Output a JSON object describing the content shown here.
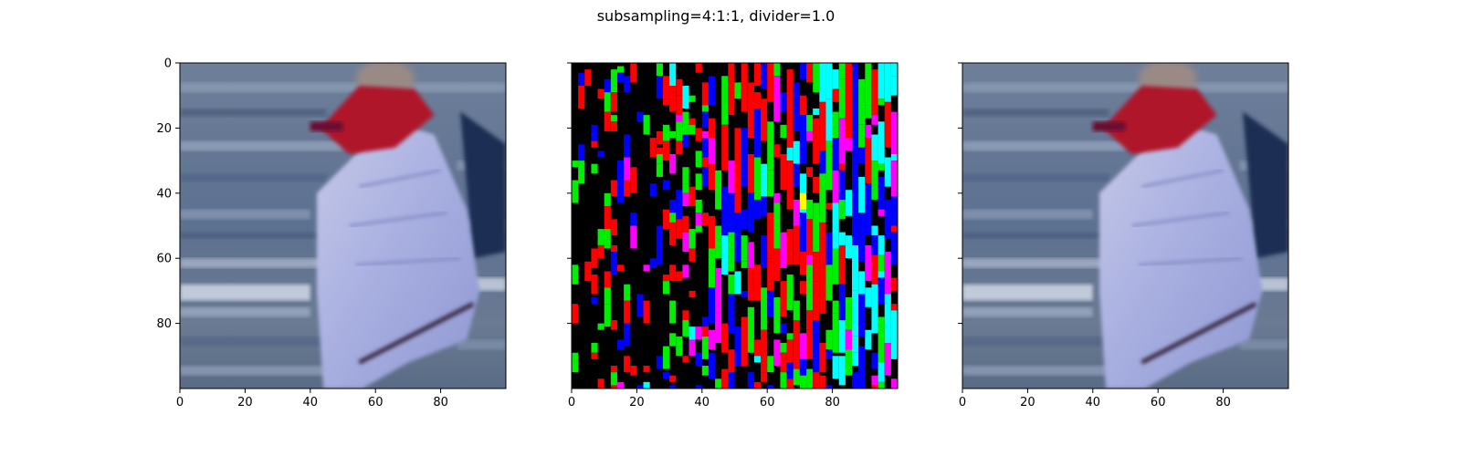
{
  "figure": {
    "title": "subsampling=4:1:1, divider=1.0"
  },
  "chart_data": [
    {
      "type": "heatmap",
      "content": "photo",
      "xlim": [
        0,
        100
      ],
      "ylim": [
        100,
        0
      ],
      "xticks": [
        0,
        20,
        40,
        60,
        80
      ],
      "yticks": [
        0,
        20,
        40,
        60,
        80
      ],
      "xtick_labels": [
        "0",
        "20",
        "40",
        "60",
        "80"
      ],
      "ytick_labels": [
        "0",
        "20",
        "40",
        "60",
        "80"
      ],
      "grid": false
    },
    {
      "type": "heatmap",
      "content": "difference",
      "xlim": [
        0,
        100
      ],
      "ylim": [
        100,
        0
      ],
      "xticks": [
        0,
        20,
        40,
        60,
        80
      ],
      "yticks": [
        0,
        20,
        40,
        60,
        80
      ],
      "xtick_labels": [
        "0",
        "20",
        "40",
        "60",
        "80"
      ],
      "ytick_labels": [
        "",
        "",
        "",
        "",
        ""
      ],
      "palette": [
        "#000000",
        "#ff0000",
        "#00ee00",
        "#0000ff",
        "#00ffff",
        "#ff00ff",
        "#ffff00"
      ],
      "grid": false
    },
    {
      "type": "heatmap",
      "content": "photo",
      "xlim": [
        0,
        100
      ],
      "ylim": [
        100,
        0
      ],
      "xticks": [
        0,
        20,
        40,
        60,
        80
      ],
      "yticks": [
        0,
        20,
        40,
        60,
        80
      ],
      "xtick_labels": [
        "0",
        "20",
        "40",
        "60",
        "80"
      ],
      "ytick_labels": [
        "",
        "",
        "",
        "",
        ""
      ],
      "grid": false
    }
  ]
}
